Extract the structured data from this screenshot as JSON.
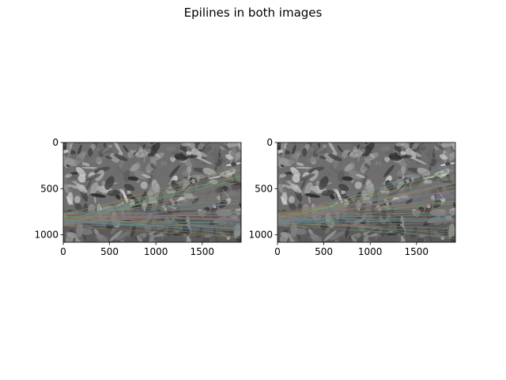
{
  "figure": {
    "suptitle": "Epilines in both images"
  },
  "chart_data": {
    "type": "image",
    "title": "Epilines in both images",
    "panels": [
      {
        "content": "grayscale photo of dense plants with colored epipolar lines",
        "xlim": [
          0,
          1920
        ],
        "ylim": [
          1080,
          0
        ],
        "xticks": [
          0,
          500,
          1000,
          1500
        ],
        "yticks": [
          0,
          500,
          1000
        ],
        "xtick_labels": [
          "0",
          "500",
          "1000",
          "1500"
        ],
        "ytick_labels": [
          "0",
          "500",
          "1000"
        ]
      },
      {
        "content": "grayscale photo of dense plants with colored epipolar lines",
        "xlim": [
          0,
          1920
        ],
        "ylim": [
          1080,
          0
        ],
        "xticks": [
          0,
          500,
          1000,
          1500
        ],
        "yticks": [
          0,
          500,
          1000
        ],
        "xtick_labels": [
          "0",
          "500",
          "1000",
          "1500"
        ],
        "ytick_labels": [
          "0",
          "500",
          "1000"
        ]
      }
    ],
    "epiline_colors": [
      "#7a8f6a",
      "#8a6f8f",
      "#5f8a8f",
      "#8f7a5a",
      "#6a7f9a",
      "#9a6a6a",
      "#6f9a7a",
      "#8a8a5a"
    ],
    "grid": false
  }
}
